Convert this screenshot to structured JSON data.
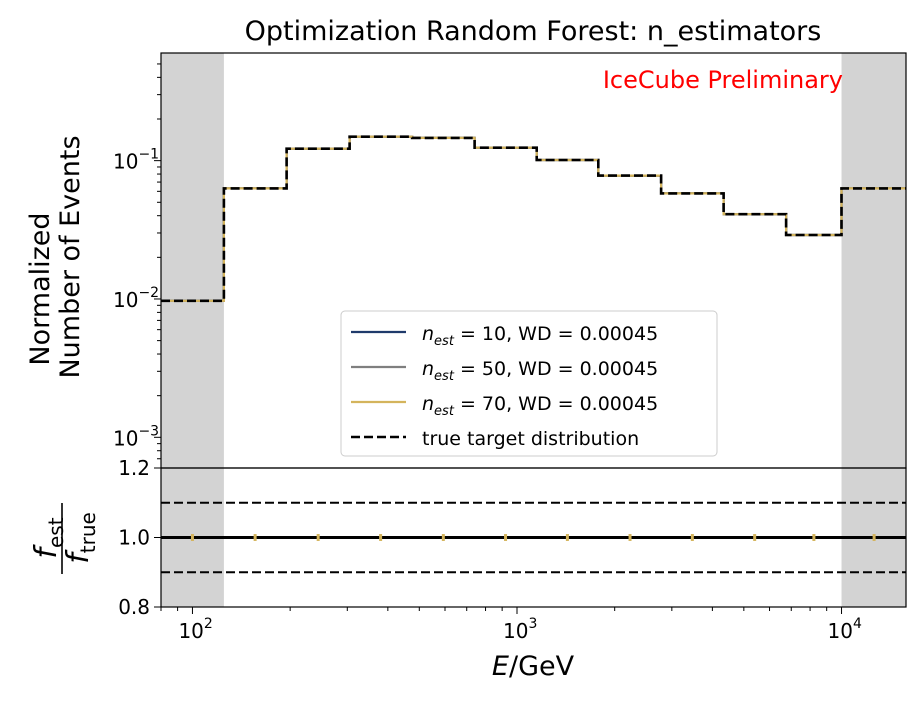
{
  "title": "Optimization Random Forest: n_estimators",
  "watermark": "IceCube Preliminary",
  "colors": {
    "band": "#d3d3d3",
    "watermark": "#ff0000",
    "nest10": "#1f3a6b",
    "nest50": "#7f7f7f",
    "nest70": "#d4b45c",
    "true": "#000000"
  },
  "chart_data": [
    {
      "type": "line",
      "panel": "main",
      "x_scale": "log",
      "y_scale": "log",
      "xlim": [
        80,
        15800
      ],
      "ylim": [
        0.0006,
        0.6
      ],
      "ylabel_line1": "Normalized",
      "ylabel_line2": "Number of Events",
      "yticks": [
        {
          "value": 0.1,
          "base": "10",
          "exp": "−1"
        },
        {
          "value": 0.01,
          "base": "10",
          "exp": "−2"
        },
        {
          "value": 0.001,
          "base": "10",
          "exp": "−3"
        }
      ],
      "shaded_ranges": [
        [
          80,
          125
        ],
        [
          10000,
          15800
        ]
      ],
      "bin_edges": [
        80,
        125,
        195,
        305,
        475,
        740,
        1150,
        1780,
        2780,
        4330,
        6750,
        10000,
        15800
      ],
      "series": [
        {
          "name_main": "n",
          "name_sub": "est",
          "name_rest": " = 10, WD = 0.00045",
          "color_key": "nest10",
          "style": "solid",
          "values": [
            0.0097,
            0.063,
            0.122,
            0.149,
            0.146,
            0.124,
            0.101,
            0.078,
            0.058,
            0.041,
            0.029,
            0.063
          ]
        },
        {
          "name_main": "n",
          "name_sub": "est",
          "name_rest": " = 50, WD = 0.00045",
          "color_key": "nest50",
          "style": "solid",
          "values": [
            0.0097,
            0.063,
            0.122,
            0.149,
            0.146,
            0.124,
            0.101,
            0.078,
            0.058,
            0.041,
            0.029,
            0.063
          ]
        },
        {
          "name_main": "n",
          "name_sub": "est",
          "name_rest": " = 70, WD = 0.00045",
          "color_key": "nest70",
          "style": "solid",
          "values": [
            0.0097,
            0.063,
            0.122,
            0.149,
            0.146,
            0.124,
            0.101,
            0.078,
            0.058,
            0.041,
            0.029,
            0.063
          ]
        },
        {
          "name_plain": "true target distribution",
          "color_key": "true",
          "style": "dashed",
          "values": [
            0.0097,
            0.063,
            0.122,
            0.149,
            0.146,
            0.124,
            0.101,
            0.078,
            0.058,
            0.041,
            0.029,
            0.063
          ]
        }
      ],
      "legend_placement": "lower-center"
    },
    {
      "type": "scatter",
      "panel": "ratio",
      "x_scale": "log",
      "xlim": [
        80,
        15800
      ],
      "ylim": [
        0.8,
        1.2
      ],
      "yticks": [
        "1.2",
        "1.0",
        "0.8"
      ],
      "ylabel_num_main": "f",
      "ylabel_num_sub": "est",
      "ylabel_den_main": "f",
      "ylabel_den_sub": "true",
      "reference_lines": [
        {
          "y": 1.0,
          "style": "solid"
        },
        {
          "y": 1.1,
          "style": "dashed"
        },
        {
          "y": 0.9,
          "style": "dashed"
        }
      ],
      "bin_centers": [
        100,
        156,
        244,
        380,
        593,
        922,
        1430,
        2230,
        3470,
        5400,
        8220,
        12600
      ],
      "ratio_values": [
        1.0,
        1.0,
        1.0,
        1.0,
        1.0,
        1.0,
        1.0,
        1.0,
        1.0,
        1.0,
        1.0,
        1.0
      ],
      "ratio_err": 0.01,
      "xticks": [
        {
          "value": 100,
          "base": "10",
          "exp": "2"
        },
        {
          "value": 1000,
          "base": "10",
          "exp": "3"
        },
        {
          "value": 10000,
          "base": "10",
          "exp": "4"
        }
      ],
      "xlabel_var": "E",
      "xlabel_unit": "/GeV"
    }
  ]
}
